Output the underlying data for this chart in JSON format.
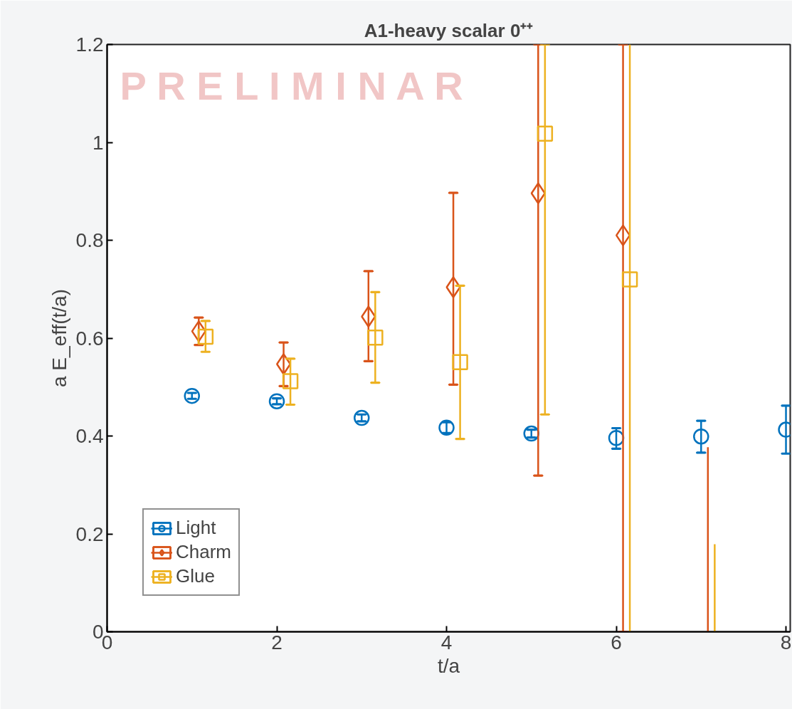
{
  "chart_data": {
    "type": "scatter",
    "title": "A1-heavy scalar 0⁺⁺",
    "xlabel": "t/a",
    "ylabel": "a E_eff(t/a)",
    "xlim": [
      0,
      8.05
    ],
    "xticks": [
      0,
      2,
      4,
      6,
      8
    ],
    "ylim": [
      0,
      1.2
    ],
    "yticks": [
      0,
      0.2,
      0.4,
      0.6,
      0.8,
      1,
      1.2
    ],
    "grid": false,
    "legend": "bottom left",
    "annotations": [
      "P R E L I M I N A R"
    ],
    "series": [
      {
        "name": "Light",
        "color": "#0072bd",
        "marker": "circle",
        "x": [
          1,
          2,
          3,
          4,
          5,
          6,
          7,
          8
        ],
        "values": [
          0.482,
          0.471,
          0.437,
          0.417,
          0.405,
          0.396,
          0.399,
          0.413
        ],
        "errors": [
          0.006,
          0.006,
          0.007,
          0.011,
          0.008,
          [
            0.374,
            0.416
          ],
          [
            0.366,
            0.431
          ],
          [
            0.364,
            0.462
          ]
        ]
      },
      {
        "name": "Charm",
        "color": "#d95319",
        "marker": "diamond",
        "x": [
          1.08,
          2.08,
          3.08,
          4.08,
          5.08,
          6.08
        ],
        "values": [
          0.614,
          0.547,
          0.644,
          0.704,
          0.896,
          0.81
        ],
        "errors": [
          [
            0.586,
            0.642
          ],
          [
            0.502,
            0.591
          ],
          [
            0.553,
            0.737
          ],
          [
            0.505,
            0.897
          ],
          [
            0.319,
            1.2
          ],
          [
            0,
            1.2
          ]
        ]
      },
      {
        "name": "Glue",
        "color": "#edb120",
        "marker": "square",
        "x": [
          1.16,
          2.16,
          3.16,
          4.16,
          5.16,
          6.16
        ],
        "values": [
          0.603,
          0.512,
          0.601,
          0.551,
          1.018,
          0.72
        ],
        "errors": [
          [
            0.572,
            0.635
          ],
          [
            0.464,
            0.558
          ],
          [
            0.509,
            0.694
          ],
          [
            0.394,
            0.707
          ],
          [
            0.444,
            1.2
          ],
          null
        ]
      },
      {
        "type": "line",
        "color": "#edb120",
        "x": [
          6.16,
          6.16
        ],
        "values": [
          0,
          1.2
        ]
      },
      {
        "type": "line",
        "color": "#d95319",
        "x": [
          7.08,
          7.08
        ],
        "values": [
          0,
          0.377
        ]
      },
      {
        "type": "line",
        "color": "#edb120",
        "x": [
          7.16,
          7.16
        ],
        "values": [
          0,
          0.179
        ]
      }
    ]
  }
}
